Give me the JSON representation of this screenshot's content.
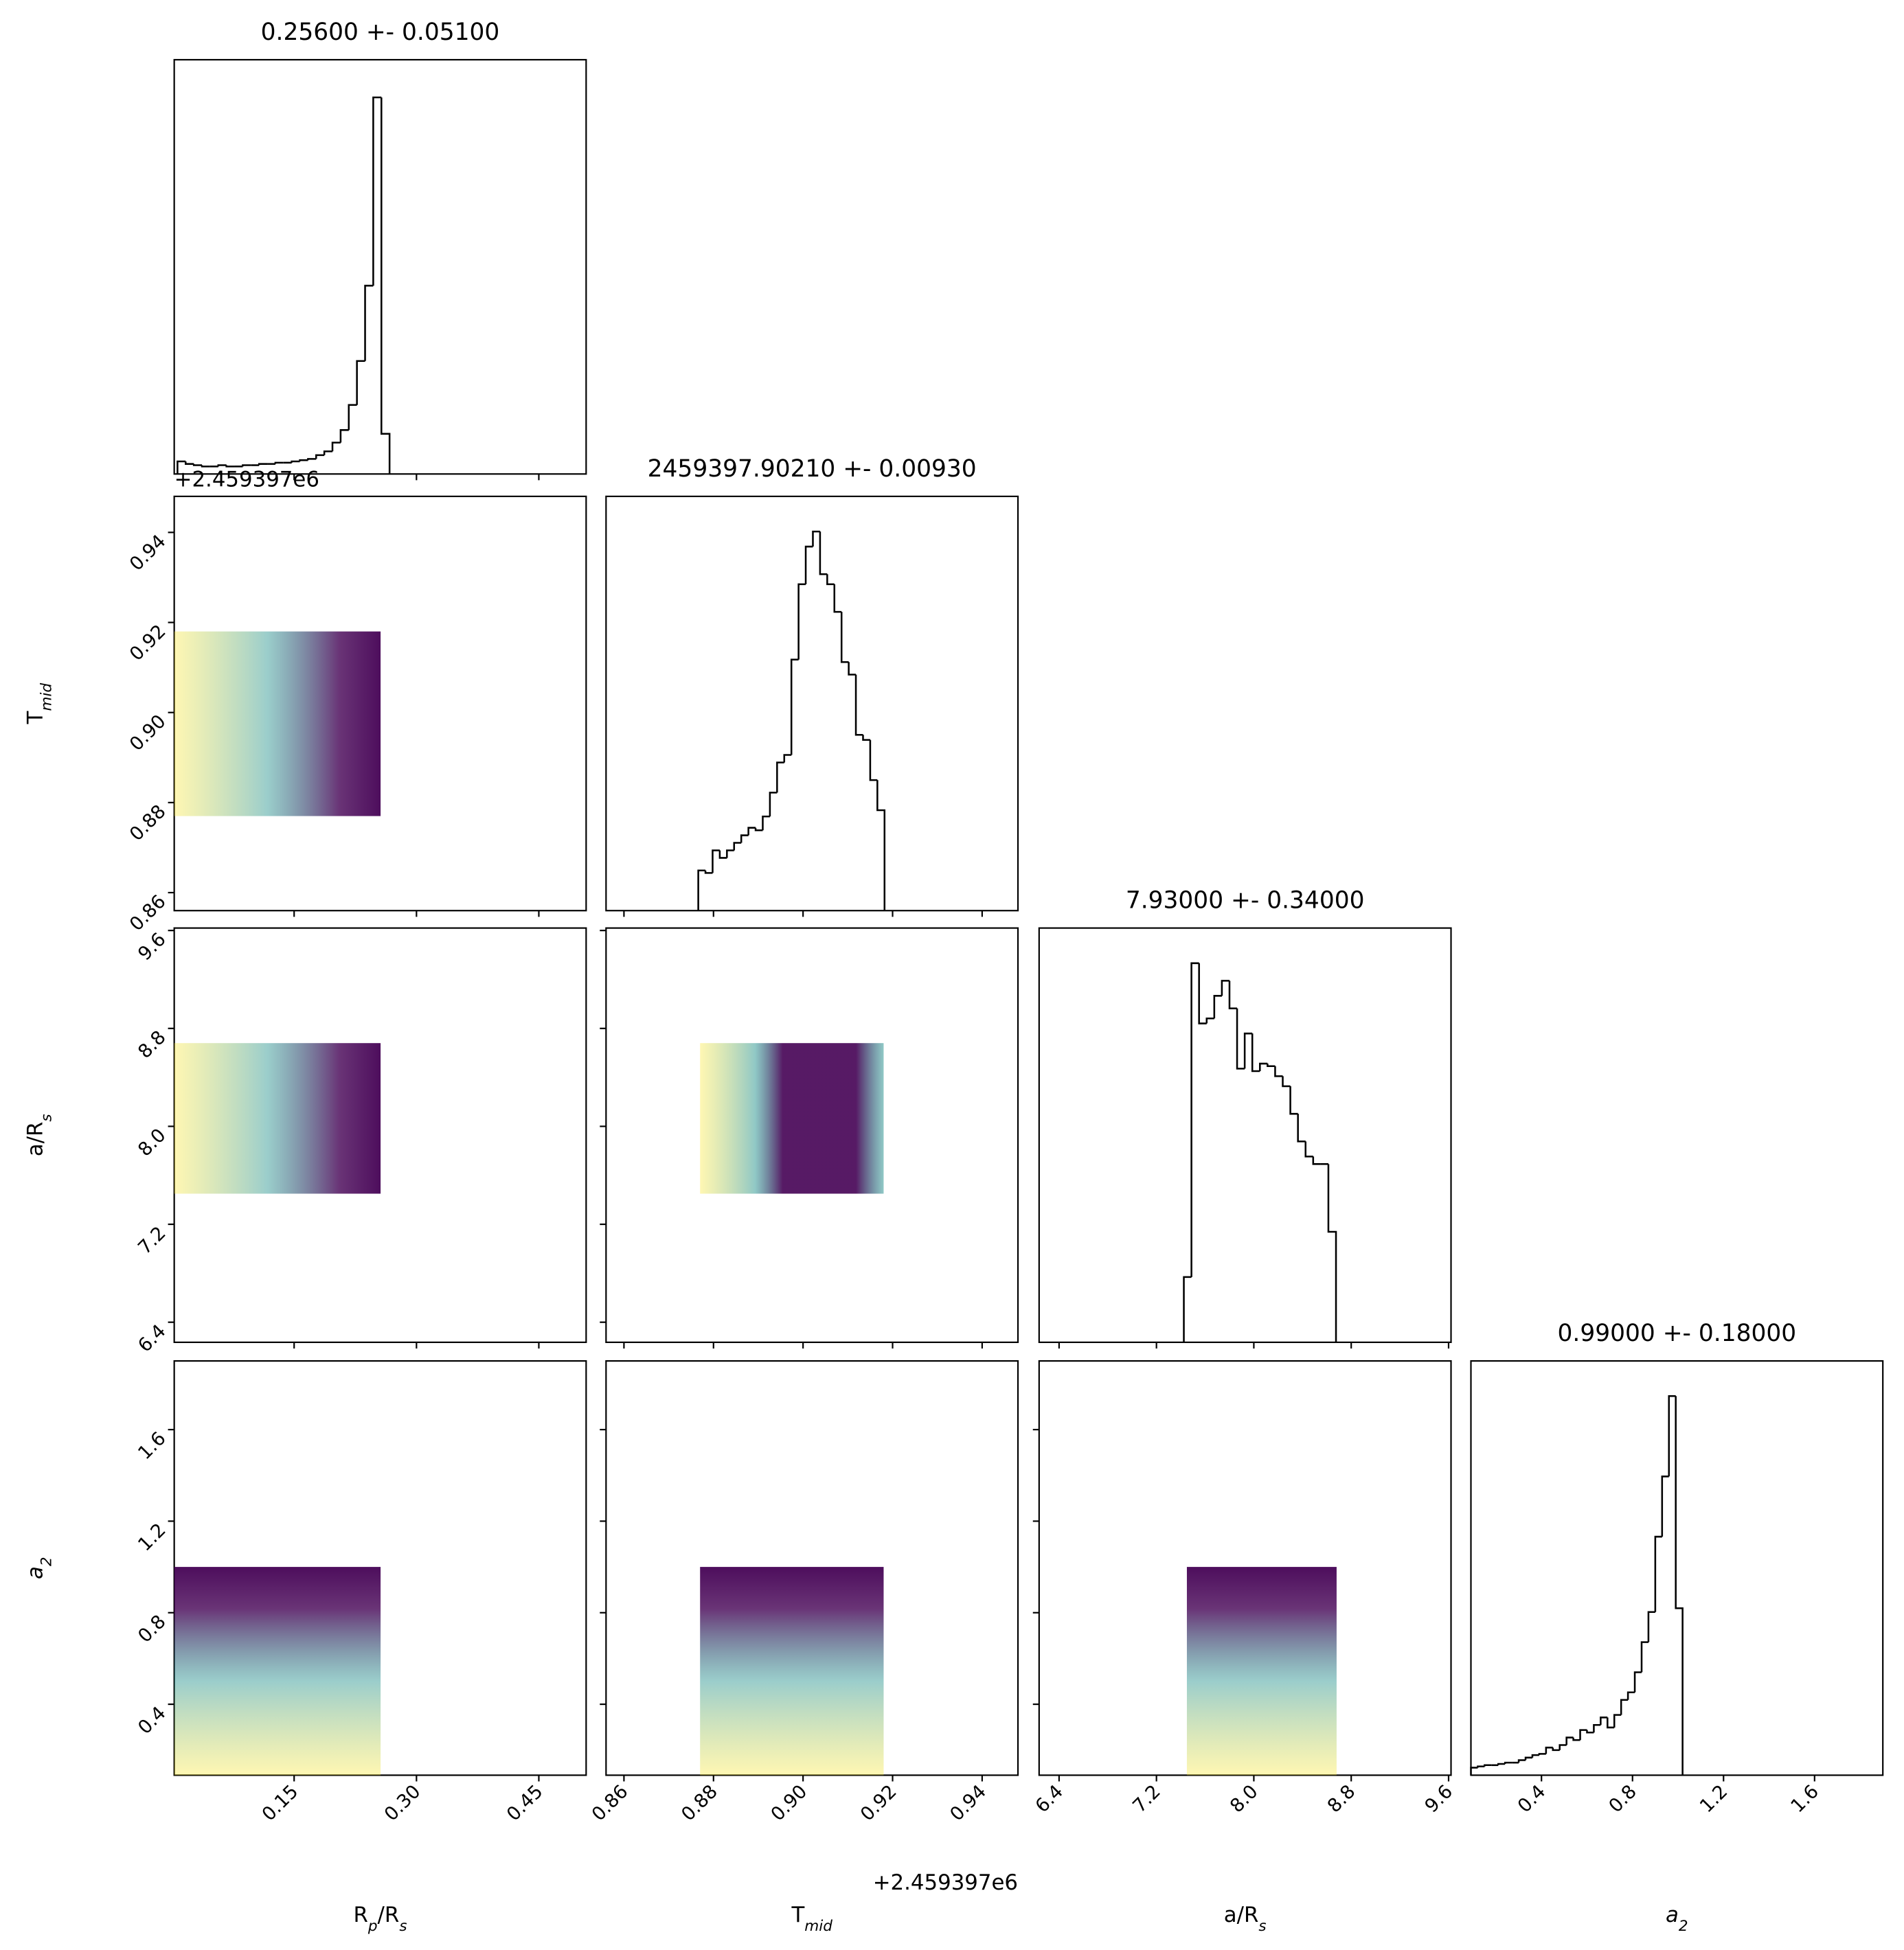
{
  "chart_data": {
    "type": "corner",
    "line_color": "#000000",
    "cloud_colors": [
      "#fde725",
      "#21918c",
      "#440154"
    ],
    "variables": [
      {
        "title": "0.25600 +- 0.05100",
        "label_parts": [
          {
            "text": "R"
          },
          {
            "text": "p",
            "sub": true
          },
          {
            "text": "/R"
          },
          {
            "text": "s",
            "sub": true
          }
        ],
        "lim": [
          0.003,
          0.508
        ],
        "ticks": [
          0.15,
          {
            "value": 0.3,
            "label": "0.30"
          },
          0.45
        ],
        "hist": {
          "ylim": [
            0,
            330
          ],
          "bins": [
            0.007,
            0.017,
            0.027,
            0.037,
            0.047,
            0.057,
            0.067,
            0.077,
            0.087,
            0.097,
            0.107,
            0.117,
            0.127,
            0.137,
            0.147,
            0.157,
            0.167,
            0.177,
            0.187,
            0.197,
            0.207,
            0.217,
            0.227,
            0.237,
            0.247,
            0.257,
            0.267
          ],
          "counts": [
            10,
            8,
            7,
            6,
            6,
            7,
            6,
            6,
            7,
            7,
            8,
            8,
            9,
            9,
            10,
            11,
            12,
            15,
            18,
            25,
            35,
            55,
            90,
            150,
            300,
            32
          ]
        }
      },
      {
        "title": "2459397.90210 +- 0.00930",
        "label_parts": [
          {
            "text": "T"
          },
          {
            "text": "mid",
            "sub": true
          }
        ],
        "offset": "+2.459397e6",
        "lim": [
          0.856,
          0.948
        ],
        "ticks": [
          0.86,
          0.88,
          {
            "value": 0.9,
            "label": "0.90"
          },
          0.92,
          0.94
        ],
        "hist": {
          "ylim": [
            0,
            330
          ],
          "bins": [
            0.8766,
            0.8782,
            0.8798,
            0.8814,
            0.883,
            0.8846,
            0.8862,
            0.8878,
            0.8894,
            0.891,
            0.8926,
            0.8942,
            0.8958,
            0.8974,
            0.899,
            0.9006,
            0.9022,
            0.9038,
            0.9054,
            0.907,
            0.9086,
            0.9102,
            0.9118,
            0.9134,
            0.915,
            0.9166,
            0.9182
          ],
          "counts": [
            32,
            30,
            48,
            42,
            48,
            54,
            60,
            66,
            64,
            75,
            94,
            118,
            124,
            200,
            260,
            290,
            302,
            268,
            260,
            238,
            198,
            188,
            140,
            136,
            104,
            80
          ]
        }
      },
      {
        "title": "7.93000 +- 0.34000",
        "label_parts": [
          {
            "text": "a/R"
          },
          {
            "text": "s",
            "sub": true
          }
        ],
        "lim": [
          6.236,
          9.62
        ],
        "ticks": [
          6.4,
          7.2,
          {
            "value": 8,
            "label": "8.0"
          },
          8.8,
          9.6
        ],
        "hist": {
          "ylim": [
            0,
            330
          ],
          "bins": [
            7.425,
            7.4875,
            7.55,
            7.6125,
            7.675,
            7.7375,
            7.8,
            7.8625,
            7.925,
            7.9875,
            8.05,
            8.1125,
            8.175,
            8.2375,
            8.3,
            8.3625,
            8.425,
            8.4875,
            8.55,
            8.6125,
            8.675
          ],
          "counts": [
            52,
            302,
            254,
            258,
            276,
            288,
            266,
            218,
            246,
            216,
            222,
            220,
            212,
            204,
            182,
            160,
            148,
            142,
            142,
            88
          ]
        }
      },
      {
        "title": "0.99000 +- 0.18000",
        "label_parts": [
          {
            "text": "a",
            "italic": true
          },
          {
            "text": "2",
            "sub": true
          }
        ],
        "lim": [
          0.09,
          1.9
        ],
        "ticks": [
          0.4,
          0.8,
          1.2,
          1.6
        ],
        "hist": {
          "ylim": [
            0,
            330
          ],
          "bins": [
            0.09,
            0.12,
            0.15,
            0.18,
            0.21,
            0.24,
            0.27,
            0.3,
            0.33,
            0.36,
            0.39,
            0.42,
            0.45,
            0.48,
            0.51,
            0.54,
            0.57,
            0.6,
            0.63,
            0.66,
            0.69,
            0.72,
            0.75,
            0.78,
            0.81,
            0.84,
            0.87,
            0.9,
            0.93,
            0.96,
            0.99,
            1.02
          ],
          "counts": [
            6,
            7,
            8,
            8,
            9,
            10,
            10,
            12,
            14,
            16,
            17,
            22,
            20,
            24,
            30,
            28,
            36,
            34,
            40,
            46,
            38,
            48,
            60,
            66,
            82,
            106,
            130,
            190,
            238,
            302,
            133
          ]
        }
      }
    ],
    "clouds": [
      {
        "x_range": [
          0.003,
          0.256
        ],
        "y_range": [
          0.877,
          0.918
        ],
        "dense": "right"
      },
      {
        "x_range": [
          0.003,
          0.256
        ],
        "y_range": [
          7.45,
          8.68
        ],
        "dense": "right"
      },
      {
        "x_range": [
          0.877,
          0.918
        ],
        "y_range": [
          7.45,
          8.68
        ],
        "dense": "center"
      },
      {
        "x_range": [
          0.003,
          0.256
        ],
        "y_range": [
          0.09,
          1.0
        ],
        "dense": "top"
      },
      {
        "x_range": [
          0.877,
          0.918
        ],
        "y_range": [
          0.09,
          1.0
        ],
        "dense": "top"
      },
      {
        "x_range": [
          7.45,
          8.68
        ],
        "y_range": [
          0.09,
          1.0
        ],
        "dense": "top"
      }
    ]
  }
}
